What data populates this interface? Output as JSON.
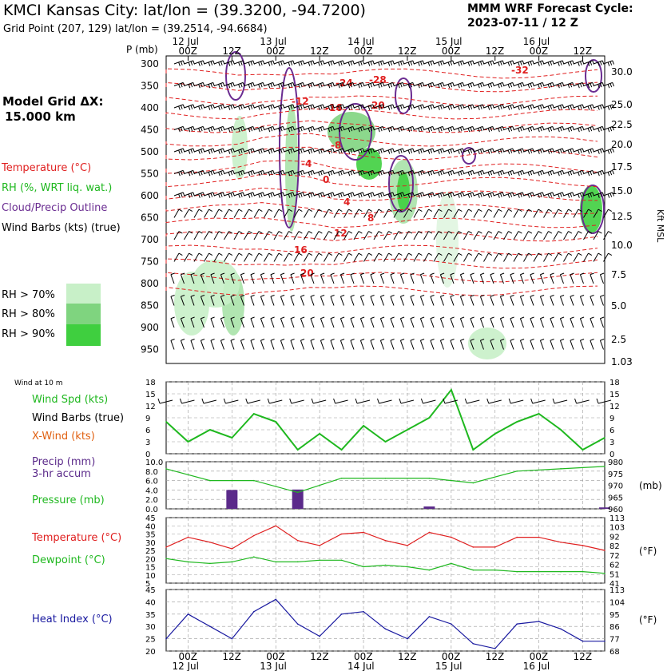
{
  "header": {
    "title": "KMCI Kansas City:  lat/lon = (39.3200, -94.7200)",
    "subtitle": "Grid Point (207, 129) lat/lon = (39.2514, -94.6684)",
    "cycle_line1": "MMM WRF Forecast Cycle:",
    "cycle_line2": "2023-07-11 / 12  Z",
    "grid_line1": "Model Grid ΔX:",
    "grid_line2": "15.000 km"
  },
  "colors": {
    "temp": "#e02020",
    "rh": "#1fb81f",
    "cloud": "#6a2c91",
    "wind": "#000000",
    "heat": "#1a1aa0",
    "precip": "#5b2a8a",
    "xwind": "#e06010"
  },
  "legend": {
    "temperature": "Temperature (°C)",
    "rh": "RH (%, WRT liq. wat.)",
    "cloud": "Cloud/Precip Outline",
    "wind": "Wind Barbs (kts) (true)",
    "rh70": "RH > 70%",
    "rh80": "RH > 80%",
    "rh90": "RH > 90%"
  },
  "time_axis": {
    "top_dates": [
      "12 Jul",
      "13 Jul",
      "14 Jul",
      "15 Jul",
      "16 Jul"
    ],
    "ticks": [
      "00Z",
      "12Z",
      "00Z",
      "12Z",
      "00Z",
      "12Z",
      "00Z",
      "12Z",
      "00Z",
      "12Z"
    ],
    "bottom_dates": [
      "12 Jul",
      "13 Jul",
      "14 Jul",
      "15 Jul",
      "16 Jul"
    ]
  },
  "upper": {
    "p_label": "P (mb)",
    "pressure_levels": [
      "300",
      "350",
      "400",
      "450",
      "500",
      "550",
      "600",
      "650",
      "700",
      "750",
      "800",
      "850",
      "900",
      "950"
    ],
    "height_labels": [
      "30.0",
      "25.0",
      "22.5",
      "20.0",
      "17.5",
      "15.0",
      "12.5",
      "10.0",
      "7.5",
      "5.0",
      "2.5",
      "1.03"
    ],
    "right_axis_label": "Kft MSL",
    "temp_labels": [
      "-32",
      "-28",
      "-24",
      "-20",
      "-16",
      "-12",
      "-8",
      "-4",
      "0",
      "4",
      "8",
      "12",
      "16",
      "20"
    ]
  },
  "panel_wind": {
    "title": "Wind at 10 m",
    "label_spd": "Wind Spd (kts)",
    "label_barbs": "Wind Barbs (true)",
    "label_xwind": "X-Wind (kts)",
    "yticks": [
      "18",
      "15",
      "12",
      "9",
      "6",
      "3",
      "0"
    ]
  },
  "panel_precip": {
    "label1": "Precip (mm)",
    "label2": "3-hr accum",
    "label3": "Pressure (mb)",
    "left_ticks": [
      "10.0",
      "8.0",
      "6.0",
      "4.0",
      "2.0",
      "0.0"
    ],
    "right_ticks": [
      "980",
      "975",
      "970",
      "965",
      "960"
    ],
    "right_unit": "(mb)"
  },
  "panel_temp": {
    "label1": "Temperature (°C)",
    "label2": "Dewpoint (°C)",
    "left_ticks": [
      "45",
      "40",
      "35",
      "30",
      "25",
      "20",
      "15",
      "10",
      "5"
    ],
    "right_ticks": [
      "113",
      "103",
      "92",
      "82",
      "72",
      "62",
      "51",
      "41"
    ],
    "right_unit": "(°F)"
  },
  "panel_heat": {
    "label1": "Heat Index (°C)",
    "left_ticks": [
      "45",
      "40",
      "35",
      "30",
      "25",
      "20"
    ],
    "right_ticks": [
      "113",
      "104",
      "95",
      "86",
      "77",
      "68"
    ],
    "right_unit": "(°F)"
  },
  "chart_data": [
    {
      "type": "line",
      "title": "Wind at 10 m",
      "ylabel": "Wind Spd (kts)",
      "ylim": [
        0,
        18
      ],
      "x_hours": [
        0,
        6,
        12,
        18,
        24,
        30,
        36,
        42,
        48,
        54,
        60,
        66,
        72,
        78,
        84,
        90,
        96,
        102,
        108,
        114,
        120
      ],
      "series": [
        {
          "name": "Wind Spd (kts)",
          "values": [
            8,
            3,
            6,
            4,
            10,
            8,
            1,
            5,
            1,
            7,
            3,
            6,
            9,
            16,
            1,
            5,
            8,
            10,
            6,
            1,
            4
          ]
        }
      ]
    },
    {
      "type": "bar",
      "ylabel": "Precip (mm)",
      "ylim": [
        0,
        10
      ],
      "x_hours": [
        18,
        36,
        72,
        120
      ],
      "values": [
        4.0,
        4.1,
        0.5,
        0.3
      ]
    },
    {
      "type": "line",
      "ylabel": "Pressure (mb)",
      "ylim": [
        960,
        980
      ],
      "x_hours": [
        0,
        12,
        24,
        36,
        48,
        60,
        72,
        84,
        96,
        108,
        120
      ],
      "series": [
        {
          "name": "Pressure (mb)",
          "values": [
            977,
            972,
            972,
            967,
            973,
            973,
            973,
            971,
            976,
            977,
            978
          ]
        }
      ]
    },
    {
      "type": "line",
      "ylabel": "Temperature (°C)",
      "ylim": [
        5,
        45
      ],
      "x_hours": [
        0,
        6,
        12,
        18,
        24,
        30,
        36,
        42,
        48,
        54,
        60,
        66,
        72,
        78,
        84,
        90,
        96,
        102,
        108,
        114,
        120
      ],
      "series": [
        {
          "name": "Temperature (°C)",
          "values": [
            27,
            33,
            30,
            26,
            34,
            40,
            31,
            28,
            35,
            36,
            31,
            28,
            36,
            33,
            27,
            27,
            33,
            33,
            30,
            28,
            25
          ]
        },
        {
          "name": "Dewpoint (°C)",
          "values": [
            20,
            18,
            17,
            18,
            21,
            18,
            18,
            19,
            19,
            15,
            16,
            15,
            13,
            17,
            13,
            13,
            12,
            12,
            12,
            12,
            11
          ]
        }
      ]
    },
    {
      "type": "line",
      "ylabel": "Heat Index (°C)",
      "ylim": [
        20,
        45
      ],
      "x_hours": [
        0,
        6,
        12,
        18,
        24,
        30,
        36,
        42,
        48,
        54,
        60,
        66,
        72,
        78,
        84,
        90,
        96,
        102,
        108,
        114,
        120
      ],
      "series": [
        {
          "name": "Heat Index (°C)",
          "values": [
            25,
            35,
            30,
            25,
            36,
            41,
            31,
            26,
            35,
            36,
            29,
            25,
            34,
            31,
            23,
            21,
            31,
            32,
            29,
            24,
            24
          ]
        }
      ]
    }
  ]
}
